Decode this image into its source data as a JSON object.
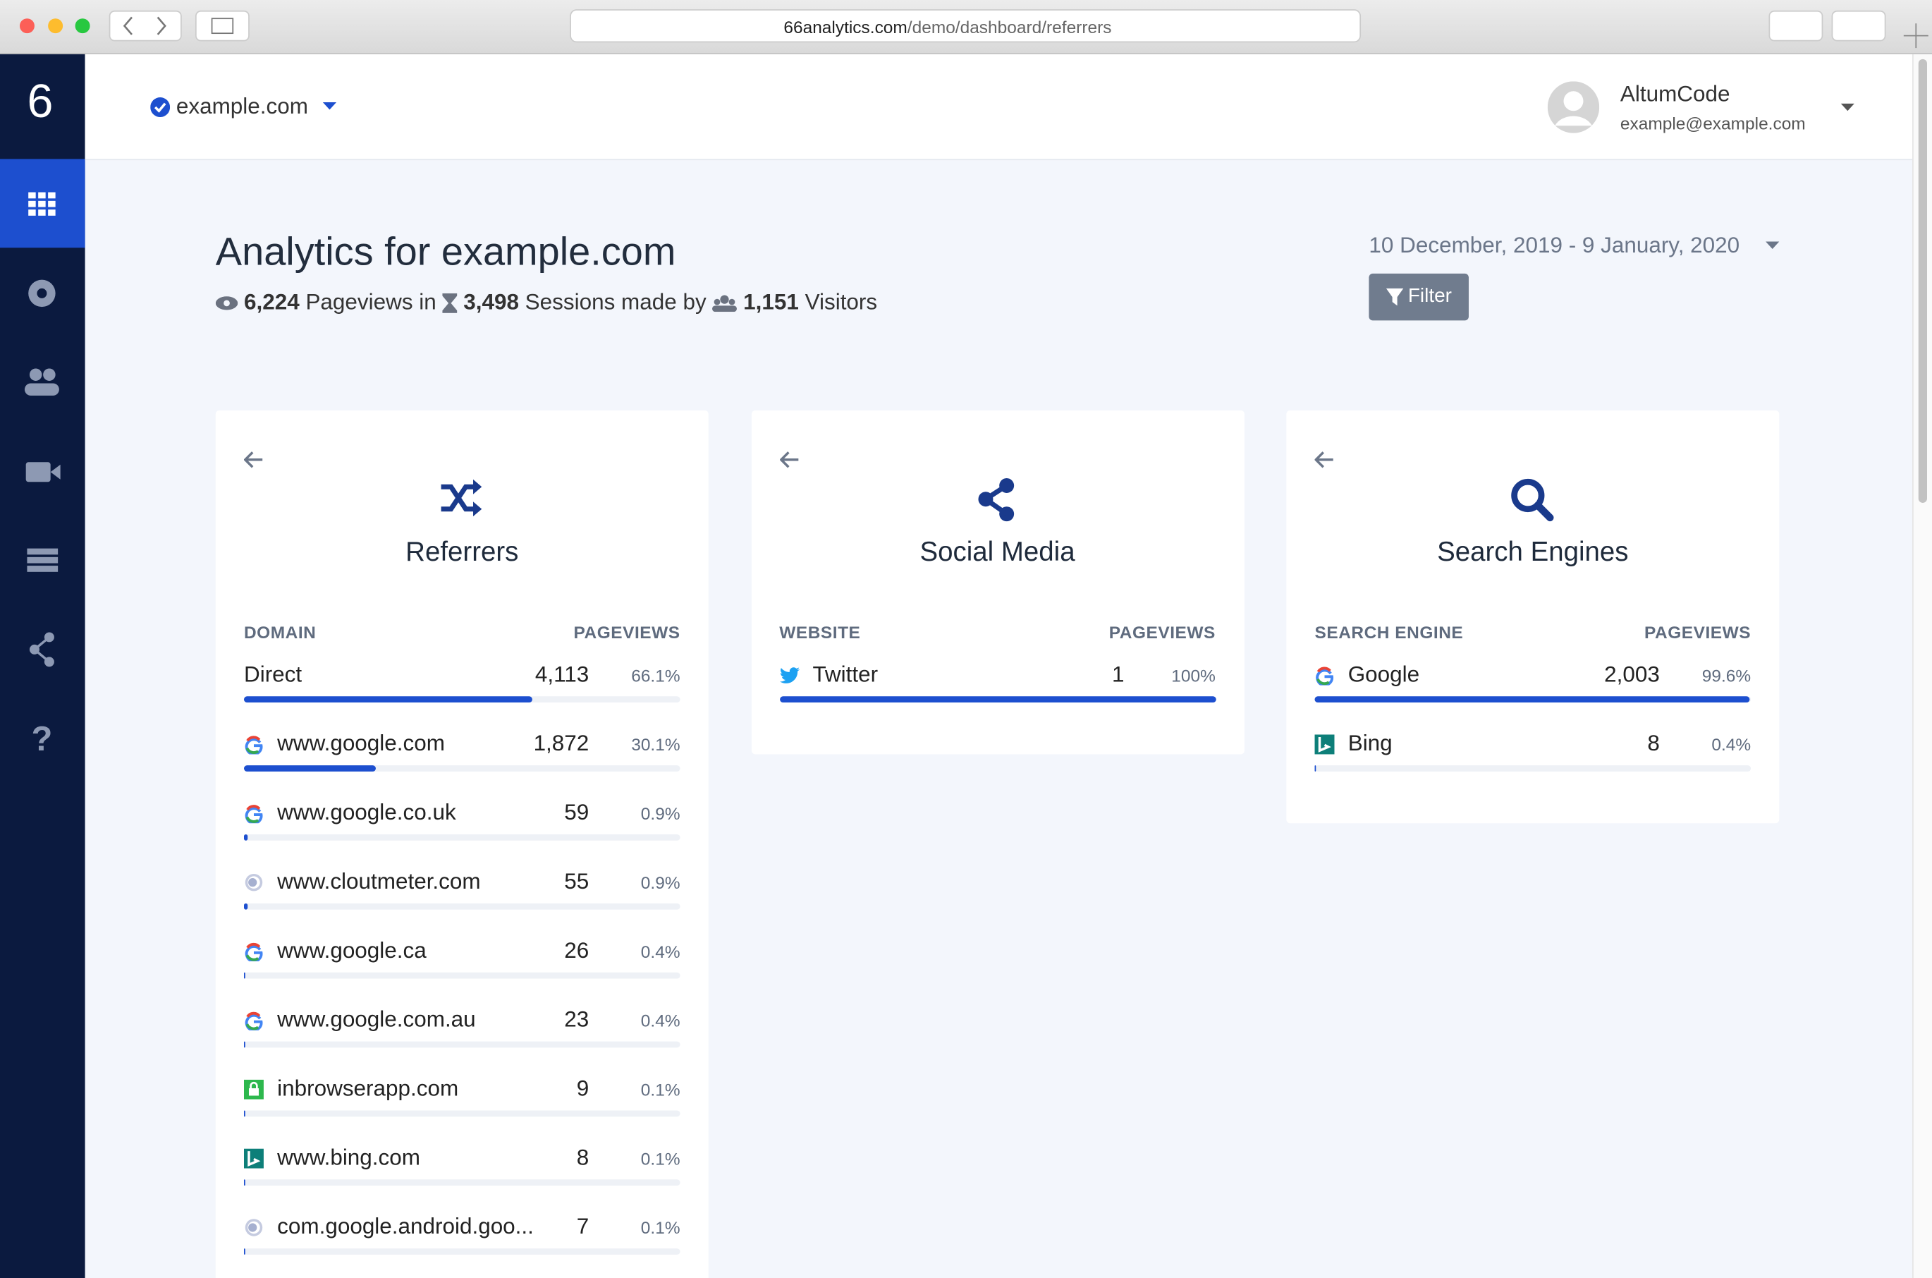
{
  "browser": {
    "url_host": "66analytics.com",
    "url_path": "/demo/dashboard/referrers"
  },
  "sidebar": {
    "logo": "6"
  },
  "header": {
    "site": "example.com",
    "user_name": "AltumCode",
    "user_email": "example@example.com"
  },
  "page": {
    "title": "Analytics for example.com",
    "pageviews": "6,224",
    "pageviews_label": "Pageviews in",
    "sessions": "3,498",
    "sessions_label": "Sessions made by",
    "visitors": "1,151",
    "visitors_label": "Visitors",
    "date_range": "10 December, 2019 - 9 January, 2020",
    "filter": "Filter"
  },
  "cards": [
    {
      "icon": "shuffle",
      "title": "Referrers",
      "col_name": "DOMAIN",
      "col_value": "PAGEVIEWS",
      "rows": [
        {
          "icon": "none",
          "name": "Direct",
          "pageviews": "4,113",
          "share": 66.1,
          "share_label": "66.1%"
        },
        {
          "icon": "google",
          "name": "www.google.com",
          "pageviews": "1,872",
          "share": 30.1,
          "share_label": "30.1%"
        },
        {
          "icon": "google",
          "name": "www.google.co.uk",
          "pageviews": "59",
          "share": 0.9,
          "share_label": "0.9%"
        },
        {
          "icon": "globe",
          "name": "www.cloutmeter.com",
          "pageviews": "55",
          "share": 0.9,
          "share_label": "0.9%"
        },
        {
          "icon": "google",
          "name": "www.google.ca",
          "pageviews": "26",
          "share": 0.4,
          "share_label": "0.4%"
        },
        {
          "icon": "google",
          "name": "www.google.com.au",
          "pageviews": "23",
          "share": 0.4,
          "share_label": "0.4%"
        },
        {
          "icon": "lock",
          "name": "inbrowserapp.com",
          "pageviews": "9",
          "share": 0.1,
          "share_label": "0.1%"
        },
        {
          "icon": "bing",
          "name": "www.bing.com",
          "pageviews": "8",
          "share": 0.1,
          "share_label": "0.1%"
        },
        {
          "icon": "globe",
          "name": "com.google.android.goo...",
          "pageviews": "7",
          "share": 0.1,
          "share_label": "0.1%"
        }
      ]
    },
    {
      "icon": "share",
      "title": "Social Media",
      "col_name": "WEBSITE",
      "col_value": "PAGEVIEWS",
      "rows": [
        {
          "icon": "twitter",
          "name": "Twitter",
          "pageviews": "1",
          "share": 100,
          "share_label": "100%"
        }
      ]
    },
    {
      "icon": "search",
      "title": "Search Engines",
      "col_name": "SEARCH ENGINE",
      "col_value": "PAGEVIEWS",
      "rows": [
        {
          "icon": "google",
          "name": "Google",
          "pageviews": "2,003",
          "share": 99.6,
          "share_label": "99.6%"
        },
        {
          "icon": "bing",
          "name": "Bing",
          "pageviews": "8",
          "share": 0.4,
          "share_label": "0.4%"
        }
      ]
    }
  ]
}
